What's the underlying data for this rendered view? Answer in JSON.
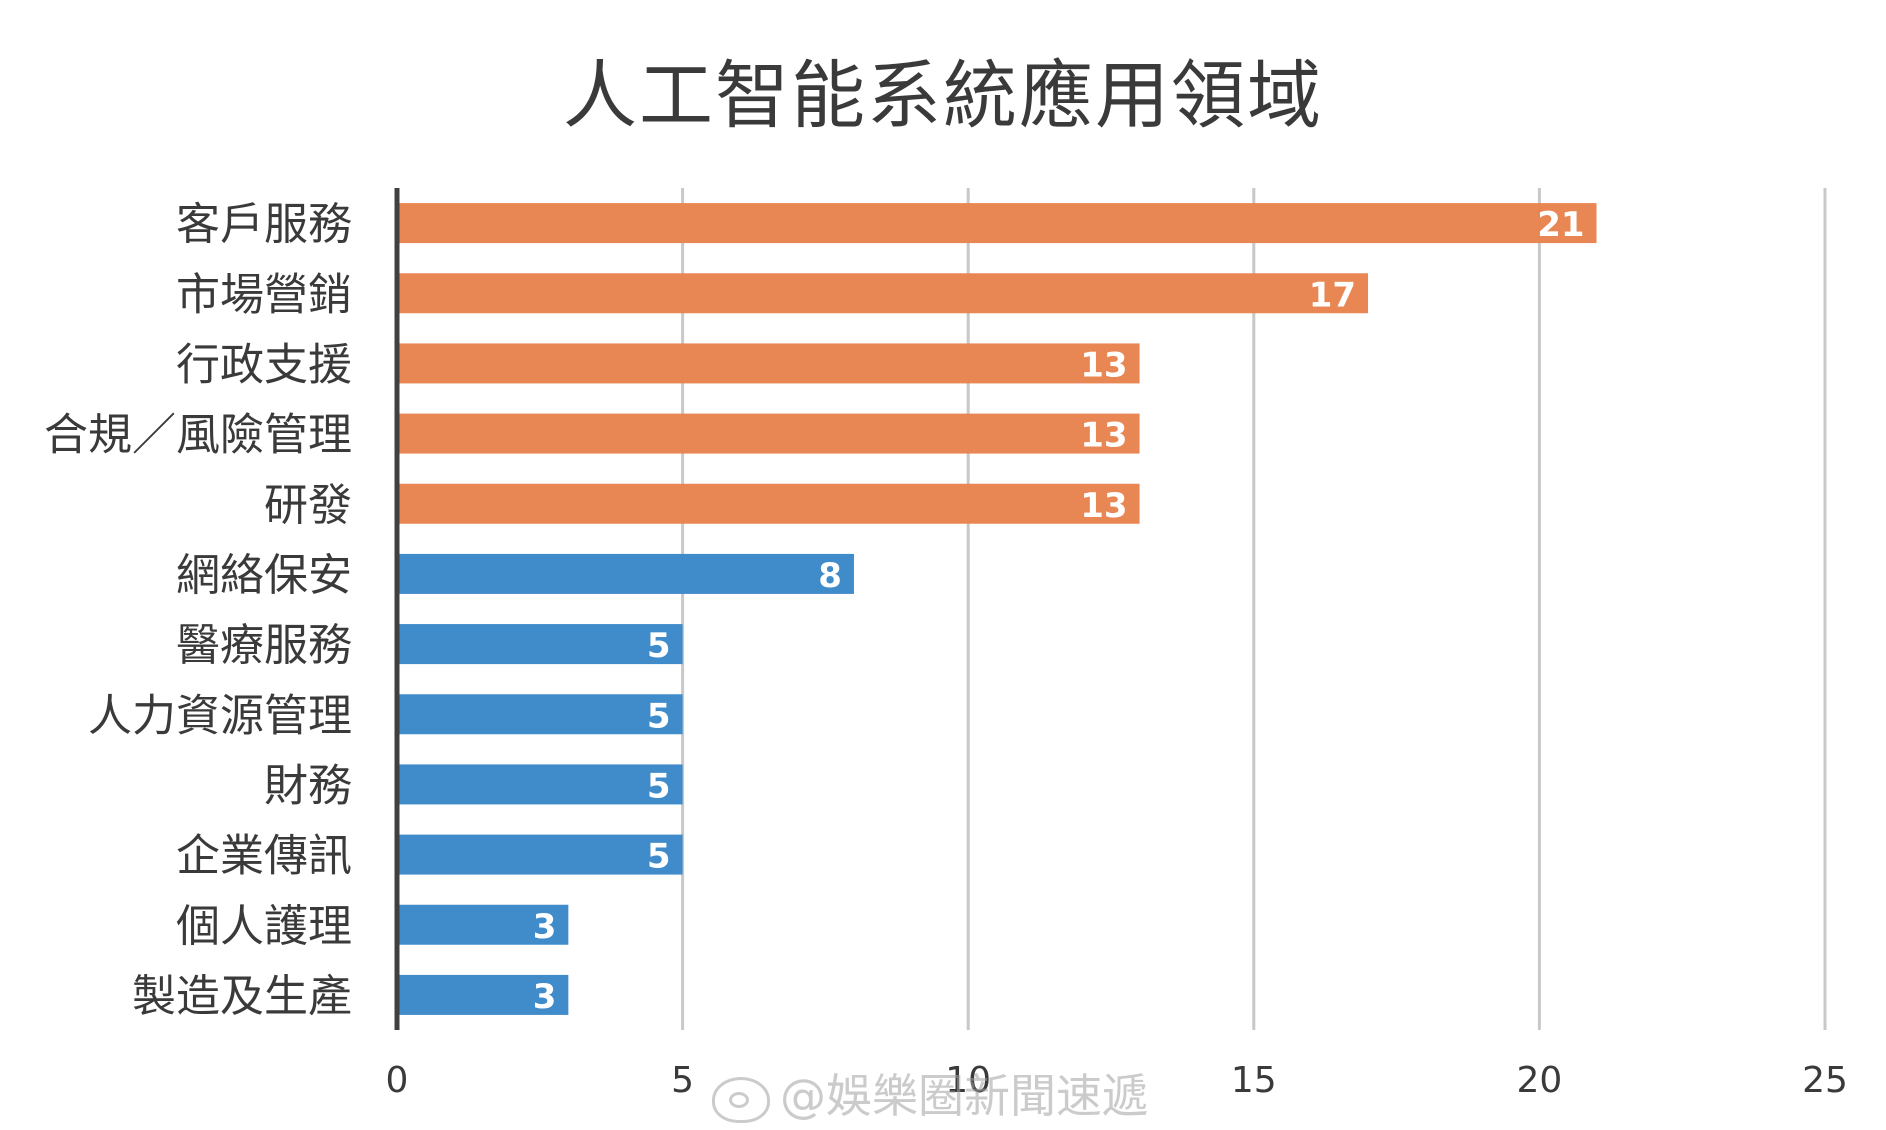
{
  "chart_data": {
    "type": "bar",
    "orientation": "horizontal",
    "title": "人工智能系統應用領域",
    "categories": [
      "客戶服務",
      "市場營銷",
      "行政支援",
      "合規／風險管理",
      "研發",
      "網絡保安",
      "醫療服務",
      "人力資源管理",
      "財務",
      "企業傳訊",
      "個人護理",
      "製造及生產"
    ],
    "values": [
      21,
      17,
      13,
      13,
      13,
      8,
      5,
      5,
      5,
      5,
      3,
      3
    ],
    "bar_colors": [
      "#E8834E",
      "#E8834E",
      "#E8834E",
      "#E8834E",
      "#E8834E",
      "#3A87C8",
      "#3A87C8",
      "#3A87C8",
      "#3A87C8",
      "#3A87C8",
      "#3A87C8",
      "#3A87C8"
    ],
    "xlim": [
      0,
      25
    ],
    "xticks": [
      0,
      5,
      10,
      15,
      20,
      25
    ],
    "xlabel": "",
    "ylabel": "",
    "grid": "vertical",
    "data_labels": true,
    "legend": "none"
  },
  "watermark": {
    "text": "@娛樂圈新聞速遞",
    "icon": "weibo-icon"
  },
  "colors": {
    "orange": "#E8834E",
    "blue": "#3A87C8",
    "grid": "#c8c8c8",
    "axis": "#404040",
    "text": "#3a3a3a"
  }
}
